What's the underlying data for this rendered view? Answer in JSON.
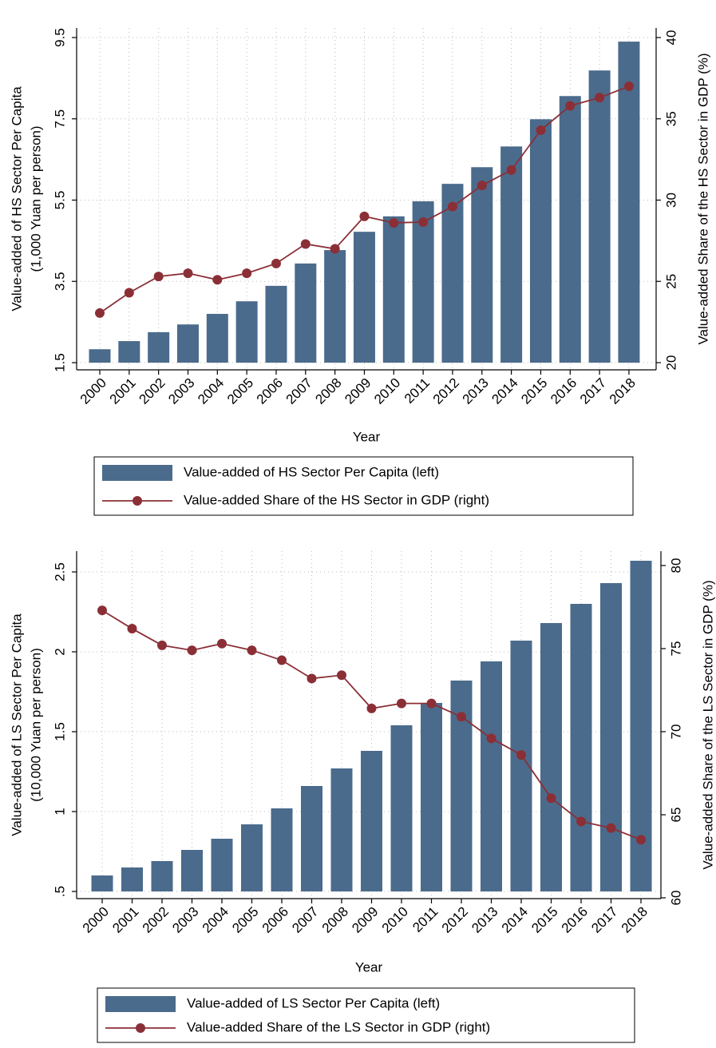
{
  "chart_data": [
    {
      "type": "combo",
      "xlabel": "Year",
      "ylabel": [
        "Value-added of HS Sector Per Capita",
        "(1,000 Yuan per person)"
      ],
      "y2label": "Value-added Share of the HS Sector in GDP (%)",
      "categories": [
        "2000",
        "2001",
        "2002",
        "2003",
        "2004",
        "2005",
        "2006",
        "2007",
        "2008",
        "2009",
        "2010",
        "2011",
        "2012",
        "2013",
        "2014",
        "2015",
        "2016",
        "2017",
        "2018"
      ],
      "series": [
        {
          "name": "Value-added of HS Sector Per Capita (left)",
          "type": "bar",
          "color": "#4b6b8c",
          "values": [
            1.83,
            2.03,
            2.25,
            2.44,
            2.7,
            3.01,
            3.39,
            3.94,
            4.27,
            4.72,
            5.1,
            5.47,
            5.9,
            6.31,
            6.82,
            7.49,
            8.06,
            8.69,
            9.4
          ]
        },
        {
          "name": "Value-added Share of the HS Sector in GDP (right)",
          "type": "line",
          "axis": "y2",
          "color": "#8b2f36",
          "values": [
            23.05,
            24.3,
            25.3,
            25.5,
            25.1,
            25.5,
            26.1,
            27.3,
            27.0,
            29.0,
            28.6,
            28.65,
            29.6,
            30.9,
            31.85,
            34.3,
            35.8,
            36.3,
            37.0
          ]
        }
      ],
      "ylim": [
        1.5,
        9.5
      ],
      "yticks": [
        1.5,
        3.5,
        5.5,
        7.5,
        9.5
      ],
      "y2lim": [
        20,
        40
      ],
      "y2ticks": [
        20,
        25,
        30,
        35,
        40
      ],
      "grid": true
    },
    {
      "type": "combo",
      "xlabel": "Year",
      "ylabel": [
        "Value-added of LS Sector Per Capita",
        "(10,000 Yuan per person)"
      ],
      "y2label": "Value-added Share of the LS Sector in GDP (%)",
      "categories": [
        "2000",
        "2001",
        "2002",
        "2003",
        "2004",
        "2005",
        "2006",
        "2007",
        "2008",
        "2009",
        "2010",
        "2011",
        "2012",
        "2013",
        "2014",
        "2015",
        "2016",
        "2017",
        "2018"
      ],
      "series": [
        {
          "name": "Value-added of LS Sector Per Capita (left)",
          "type": "bar",
          "color": "#4b6b8c",
          "values": [
            0.6,
            0.65,
            0.69,
            0.76,
            0.83,
            0.92,
            1.02,
            1.16,
            1.27,
            1.38,
            1.54,
            1.68,
            1.82,
            1.94,
            2.07,
            2.18,
            2.3,
            2.43,
            2.57
          ]
        },
        {
          "name": "Value-added Share of the LS Sector in GDP (right)",
          "type": "line",
          "axis": "y2",
          "color": "#8b2f36",
          "values": [
            77.3,
            76.2,
            75.2,
            74.9,
            75.3,
            74.9,
            74.3,
            73.2,
            73.4,
            71.4,
            71.7,
            71.7,
            70.9,
            69.6,
            68.6,
            66.0,
            64.6,
            64.2,
            63.5
          ]
        }
      ],
      "ylim": [
        0.5,
        2.5
      ],
      "yticks": [
        {
          "value": 0.5,
          "label": ".5"
        },
        1,
        1.5,
        2,
        2.5
      ],
      "y2lim": [
        60,
        80
      ],
      "y2ticks": [
        60,
        65,
        70,
        75,
        80
      ],
      "grid": true
    }
  ]
}
